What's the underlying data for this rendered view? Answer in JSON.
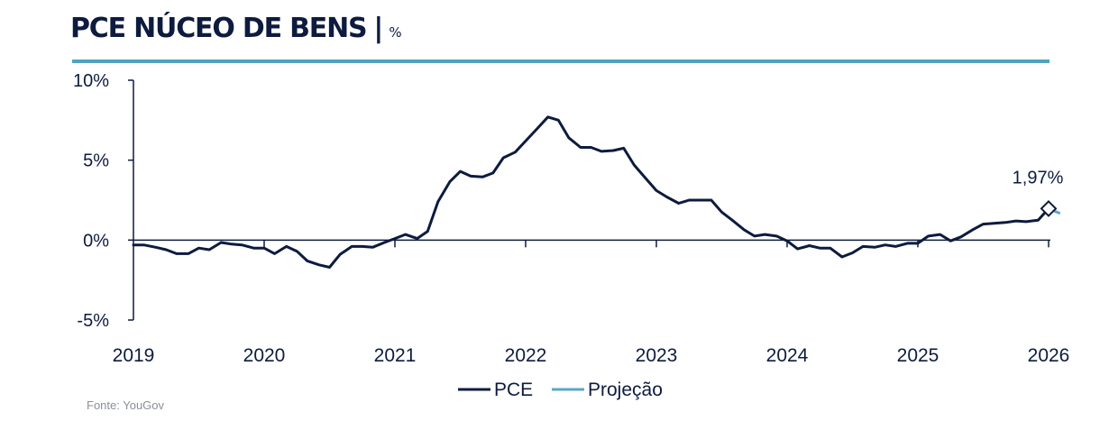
{
  "header": {
    "title": "PCE NÚCEO DE BENS",
    "separator": "|",
    "unit": "%"
  },
  "footer": {
    "source": "Fonte: YouGov"
  },
  "colors": {
    "pce": "#0d1b3e",
    "projection": "#5aa7c7",
    "rule": "#4fa3c0",
    "source": "#8a8f99"
  },
  "chart_data": {
    "type": "line",
    "title": "PCE NÚCEO DE BENS",
    "xlabel": "",
    "ylabel": "%",
    "x_range": [
      2019.0,
      2026.1
    ],
    "ylim": [
      -5,
      10
    ],
    "y_ticks": [
      {
        "value": 10,
        "label": "10%"
      },
      {
        "value": 5,
        "label": "5%"
      },
      {
        "value": 0,
        "label": "0%"
      },
      {
        "value": -5,
        "label": "-5%"
      }
    ],
    "x_ticks": [
      {
        "value": 2019,
        "label": "2019"
      },
      {
        "value": 2020,
        "label": "2020"
      },
      {
        "value": 2021,
        "label": "2021"
      },
      {
        "value": 2022,
        "label": "2022"
      },
      {
        "value": 2023,
        "label": "2023"
      },
      {
        "value": 2024,
        "label": "2024"
      },
      {
        "value": 2025,
        "label": "2025"
      },
      {
        "value": 2026,
        "label": "2026"
      }
    ],
    "legend": {
      "position": "bottom-center",
      "entries": [
        {
          "name": "PCE",
          "series": "pce"
        },
        {
          "name": "Projeção",
          "series": "projection"
        }
      ]
    },
    "series": [
      {
        "id": "pce",
        "name": "PCE",
        "color": "#0d1b3e",
        "points": [
          [
            2019.0,
            -0.3
          ],
          [
            2019.08,
            -0.3
          ],
          [
            2019.17,
            -0.45
          ],
          [
            2019.25,
            -0.6
          ],
          [
            2019.33,
            -0.85
          ],
          [
            2019.42,
            -0.85
          ],
          [
            2019.5,
            -0.5
          ],
          [
            2019.58,
            -0.6
          ],
          [
            2019.67,
            -0.15
          ],
          [
            2019.75,
            -0.25
          ],
          [
            2019.83,
            -0.3
          ],
          [
            2019.92,
            -0.5
          ],
          [
            2020.0,
            -0.5
          ],
          [
            2020.08,
            -0.85
          ],
          [
            2020.17,
            -0.4
          ],
          [
            2020.25,
            -0.7
          ],
          [
            2020.33,
            -1.3
          ],
          [
            2020.42,
            -1.55
          ],
          [
            2020.5,
            -1.7
          ],
          [
            2020.58,
            -0.9
          ],
          [
            2020.67,
            -0.4
          ],
          [
            2020.75,
            -0.4
          ],
          [
            2020.83,
            -0.45
          ],
          [
            2020.92,
            -0.15
          ],
          [
            2021.0,
            0.1
          ],
          [
            2021.08,
            0.35
          ],
          [
            2021.17,
            0.1
          ],
          [
            2021.25,
            0.55
          ],
          [
            2021.33,
            2.4
          ],
          [
            2021.42,
            3.65
          ],
          [
            2021.5,
            4.3
          ],
          [
            2021.58,
            4.0
          ],
          [
            2021.67,
            3.95
          ],
          [
            2021.75,
            4.2
          ],
          [
            2021.83,
            5.15
          ],
          [
            2021.92,
            5.5
          ],
          [
            2022.0,
            6.2
          ],
          [
            2022.08,
            6.9
          ],
          [
            2022.17,
            7.7
          ],
          [
            2022.25,
            7.5
          ],
          [
            2022.33,
            6.4
          ],
          [
            2022.42,
            5.8
          ],
          [
            2022.5,
            5.8
          ],
          [
            2022.58,
            5.55
          ],
          [
            2022.67,
            5.6
          ],
          [
            2022.75,
            5.75
          ],
          [
            2022.83,
            4.7
          ],
          [
            2022.92,
            3.85
          ],
          [
            2023.0,
            3.1
          ],
          [
            2023.08,
            2.7
          ],
          [
            2023.17,
            2.3
          ],
          [
            2023.25,
            2.5
          ],
          [
            2023.33,
            2.5
          ],
          [
            2023.42,
            2.5
          ],
          [
            2023.5,
            1.75
          ],
          [
            2023.58,
            1.25
          ],
          [
            2023.67,
            0.65
          ],
          [
            2023.75,
            0.25
          ],
          [
            2023.83,
            0.35
          ],
          [
            2023.92,
            0.25
          ],
          [
            2024.0,
            -0.05
          ],
          [
            2024.08,
            -0.55
          ],
          [
            2024.17,
            -0.35
          ],
          [
            2024.25,
            -0.5
          ],
          [
            2024.33,
            -0.5
          ],
          [
            2024.42,
            -1.05
          ],
          [
            2024.5,
            -0.8
          ],
          [
            2024.58,
            -0.4
          ],
          [
            2024.67,
            -0.45
          ],
          [
            2024.75,
            -0.3
          ],
          [
            2024.83,
            -0.4
          ],
          [
            2024.92,
            -0.2
          ],
          [
            2025.0,
            -0.2
          ],
          [
            2025.08,
            0.25
          ],
          [
            2025.17,
            0.35
          ],
          [
            2025.25,
            -0.05
          ],
          [
            2025.33,
            0.2
          ],
          [
            2025.42,
            0.65
          ],
          [
            2025.5,
            1.0
          ],
          [
            2025.58,
            1.05
          ],
          [
            2025.67,
            1.1
          ],
          [
            2025.75,
            1.2
          ],
          [
            2025.83,
            1.15
          ],
          [
            2025.92,
            1.25
          ],
          [
            2026.0,
            1.97
          ]
        ]
      },
      {
        "id": "projection",
        "name": "Projeção",
        "color": "#5aa7c7",
        "points": [
          [
            2026.0,
            1.97
          ],
          [
            2026.08,
            1.7
          ]
        ]
      }
    ],
    "annotations": [
      {
        "label": "1,97%",
        "x": 2026.0,
        "y": 1.97,
        "marker": "diamond"
      }
    ]
  }
}
